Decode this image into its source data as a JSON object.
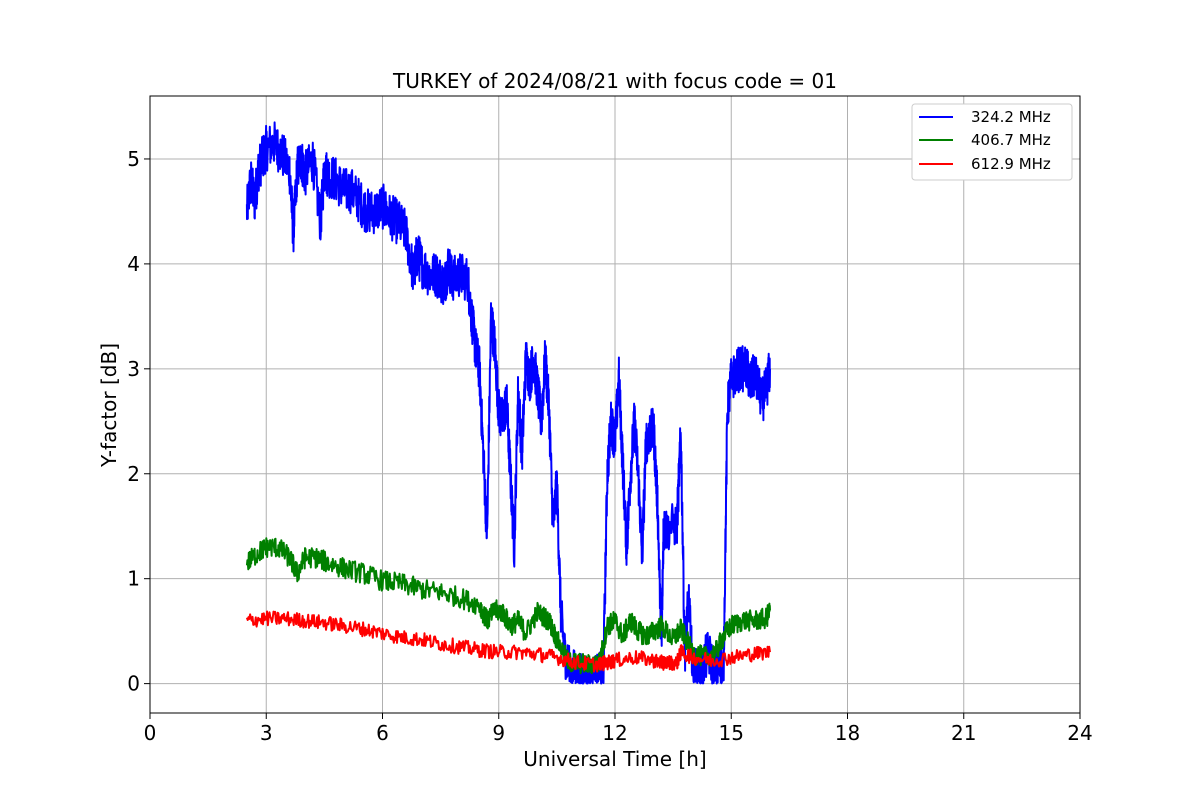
{
  "chart_data": {
    "type": "line",
    "title": "TURKEY of 2024/08/21 with focus code = 01",
    "xlabel": "Universal Time [h]",
    "ylabel": "Y-factor [dB]",
    "xlim": [
      0,
      24
    ],
    "ylim": [
      -0.28,
      5.6
    ],
    "xticks": [
      0,
      3,
      6,
      9,
      12,
      15,
      18,
      21,
      24
    ],
    "yticks": [
      0,
      1,
      2,
      3,
      4,
      5
    ],
    "grid": true,
    "legend_position": "top-right",
    "series": [
      {
        "name": "324.2 MHz",
        "color": "#0000ff",
        "x": [
          2.5,
          2.6,
          2.7,
          2.8,
          2.9,
          3.0,
          3.2,
          3.4,
          3.6,
          3.7,
          3.8,
          3.9,
          4.0,
          4.2,
          4.4,
          4.5,
          4.6,
          4.8,
          5.0,
          5.2,
          5.4,
          5.6,
          5.8,
          6.0,
          6.2,
          6.4,
          6.6,
          6.8,
          6.9,
          7.0,
          7.2,
          7.4,
          7.6,
          7.7,
          7.8,
          8.0,
          8.2,
          8.3,
          8.4,
          8.5,
          8.6,
          8.7,
          8.8,
          8.9,
          9.0,
          9.1,
          9.2,
          9.3,
          9.4,
          9.5,
          9.6,
          9.7,
          9.8,
          9.9,
          10.0,
          10.1,
          10.2,
          10.3,
          10.4,
          10.5,
          10.6,
          10.7,
          10.8,
          11.0,
          11.2,
          11.4,
          11.6,
          11.7,
          11.8,
          11.9,
          12.0,
          12.1,
          12.2,
          12.3,
          12.4,
          12.5,
          12.6,
          12.7,
          12.8,
          12.9,
          13.0,
          13.1,
          13.2,
          13.25,
          13.3,
          13.6,
          13.7,
          13.8,
          13.9,
          14.0,
          14.2,
          14.4,
          14.6,
          14.7,
          14.8,
          14.9,
          15.0,
          15.2,
          15.4,
          15.5,
          15.6,
          15.8,
          15.9,
          16.0
        ],
        "values": [
          4.5,
          4.8,
          4.6,
          4.9,
          5.0,
          5.1,
          5.15,
          5.05,
          4.9,
          4.3,
          4.9,
          5.0,
          4.85,
          5.0,
          4.4,
          4.9,
          4.85,
          4.8,
          4.7,
          4.7,
          4.6,
          4.5,
          4.5,
          4.55,
          4.45,
          4.4,
          4.3,
          3.9,
          4.1,
          4.0,
          3.9,
          3.9,
          3.8,
          4.0,
          3.85,
          3.9,
          3.85,
          3.5,
          3.2,
          3.0,
          2.2,
          1.4,
          3.5,
          3.2,
          2.6,
          2.5,
          2.7,
          2.0,
          1.3,
          2.8,
          2.2,
          3.1,
          2.9,
          3.1,
          2.8,
          2.5,
          3.1,
          2.6,
          1.5,
          1.9,
          0.7,
          0.3,
          0.15,
          0.1,
          0.05,
          0.05,
          0.08,
          0.1,
          2.0,
          2.5,
          2.3,
          2.9,
          2.1,
          1.3,
          2.0,
          2.5,
          2.0,
          1.2,
          2.3,
          2.4,
          2.4,
          1.7,
          0.3,
          1.45,
          1.47,
          1.52,
          2.4,
          0.3,
          0.8,
          0.15,
          0.1,
          0.3,
          0.1,
          0.2,
          0.1,
          2.6,
          2.9,
          3.0,
          3.0,
          2.85,
          2.95,
          2.7,
          2.8,
          3.0
        ]
      },
      {
        "name": "406.7 MHz",
        "color": "#008000",
        "x": [
          2.5,
          2.8,
          3.0,
          3.3,
          3.6,
          3.8,
          4.0,
          4.3,
          4.6,
          5.0,
          5.5,
          6.0,
          6.5,
          7.0,
          7.5,
          8.0,
          8.5,
          8.7,
          8.9,
          9.1,
          9.3,
          9.5,
          9.7,
          10.0,
          10.3,
          10.5,
          10.8,
          11.0,
          11.3,
          11.6,
          11.8,
          12.0,
          12.2,
          12.4,
          12.6,
          12.8,
          13.0,
          13.2,
          13.5,
          13.7,
          14.0,
          14.3,
          14.6,
          14.8,
          15.0,
          15.3,
          15.6,
          15.9,
          16.0
        ],
        "values": [
          1.15,
          1.25,
          1.3,
          1.3,
          1.2,
          1.05,
          1.2,
          1.2,
          1.15,
          1.1,
          1.05,
          0.98,
          0.95,
          0.9,
          0.87,
          0.82,
          0.75,
          0.6,
          0.7,
          0.68,
          0.55,
          0.6,
          0.48,
          0.68,
          0.6,
          0.42,
          0.2,
          0.2,
          0.18,
          0.2,
          0.55,
          0.6,
          0.45,
          0.6,
          0.5,
          0.45,
          0.5,
          0.55,
          0.42,
          0.52,
          0.3,
          0.25,
          0.3,
          0.45,
          0.55,
          0.6,
          0.6,
          0.62,
          0.7
        ]
      },
      {
        "name": "612.9 MHz",
        "color": "#ff0000",
        "x": [
          2.5,
          3.0,
          3.5,
          4.0,
          4.5,
          5.0,
          5.5,
          6.0,
          6.5,
          7.0,
          7.5,
          8.0,
          8.5,
          9.0,
          9.5,
          10.0,
          10.5,
          11.0,
          11.5,
          11.8,
          12.0,
          12.5,
          13.0,
          13.2,
          13.3,
          13.6,
          13.7,
          14.0,
          14.5,
          15.0,
          15.5,
          16.0
        ],
        "values": [
          0.6,
          0.62,
          0.62,
          0.6,
          0.58,
          0.55,
          0.52,
          0.48,
          0.44,
          0.42,
          0.38,
          0.35,
          0.32,
          0.3,
          0.3,
          0.28,
          0.25,
          0.2,
          0.18,
          0.2,
          0.22,
          0.25,
          0.22,
          0.2,
          0.2,
          0.2,
          0.3,
          0.25,
          0.22,
          0.25,
          0.28,
          0.3
        ]
      }
    ]
  }
}
